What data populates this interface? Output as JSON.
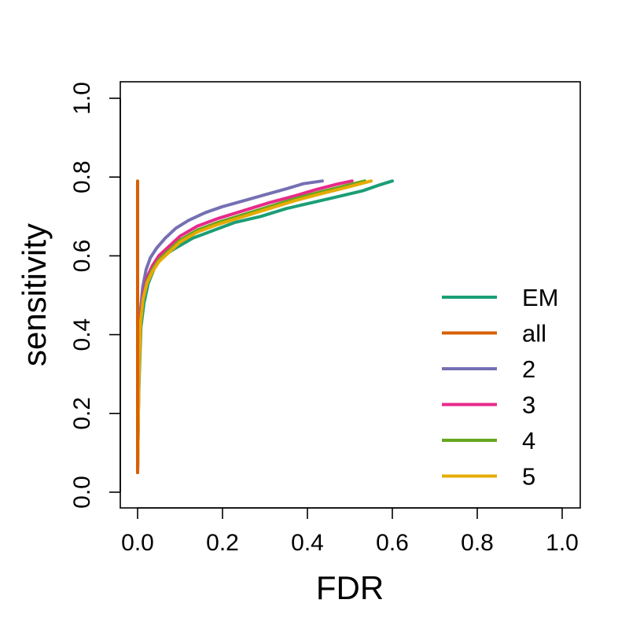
{
  "chart_data": {
    "type": "line",
    "title": "",
    "xlabel": "FDR",
    "ylabel": "sensitivity",
    "xlim": [
      0,
      1
    ],
    "ylim": [
      0,
      1
    ],
    "xticks": [
      "0.0",
      "0.2",
      "0.4",
      "0.6",
      "0.8",
      "1.0"
    ],
    "yticks": [
      "0.0",
      "0.2",
      "0.4",
      "0.6",
      "0.8",
      "1.0"
    ],
    "grid": false,
    "legend_position": "bottom-right",
    "series": [
      {
        "name": "EM",
        "color": "#1B9E77",
        "x": [
          0.0,
          0.004,
          0.008,
          0.015,
          0.025,
          0.04,
          0.06,
          0.09,
          0.13,
          0.18,
          0.23,
          0.29,
          0.35,
          0.41,
          0.47,
          0.53,
          0.57,
          0.6
        ],
        "y": [
          0.14,
          0.3,
          0.42,
          0.48,
          0.53,
          0.57,
          0.6,
          0.62,
          0.645,
          0.665,
          0.685,
          0.7,
          0.72,
          0.735,
          0.75,
          0.765,
          0.78,
          0.79
        ]
      },
      {
        "name": "all",
        "color": "#D95F02",
        "x": [
          0.0,
          0.0
        ],
        "y": [
          0.05,
          0.79
        ]
      },
      {
        "name": "2",
        "color": "#7570B3",
        "x": [
          0.0,
          0.003,
          0.006,
          0.012,
          0.02,
          0.03,
          0.045,
          0.065,
          0.09,
          0.12,
          0.16,
          0.2,
          0.25,
          0.3,
          0.35,
          0.39,
          0.435
        ],
        "y": [
          0.05,
          0.3,
          0.45,
          0.52,
          0.565,
          0.595,
          0.62,
          0.645,
          0.67,
          0.69,
          0.71,
          0.725,
          0.74,
          0.755,
          0.77,
          0.783,
          0.79
        ]
      },
      {
        "name": "3",
        "color": "#E7298A",
        "x": [
          0.0,
          0.003,
          0.007,
          0.013,
          0.022,
          0.035,
          0.05,
          0.075,
          0.1,
          0.14,
          0.19,
          0.25,
          0.31,
          0.37,
          0.42,
          0.47,
          0.505
        ],
        "y": [
          0.05,
          0.3,
          0.44,
          0.5,
          0.545,
          0.575,
          0.6,
          0.625,
          0.65,
          0.675,
          0.695,
          0.715,
          0.735,
          0.752,
          0.768,
          0.782,
          0.79
        ]
      },
      {
        "name": "4",
        "color": "#66A61E",
        "x": [
          0.0,
          0.003,
          0.007,
          0.013,
          0.022,
          0.035,
          0.05,
          0.075,
          0.1,
          0.14,
          0.19,
          0.25,
          0.31,
          0.37,
          0.43,
          0.49,
          0.535
        ],
        "y": [
          0.05,
          0.29,
          0.43,
          0.49,
          0.535,
          0.565,
          0.59,
          0.615,
          0.64,
          0.665,
          0.685,
          0.705,
          0.725,
          0.745,
          0.762,
          0.778,
          0.79
        ]
      },
      {
        "name": "5",
        "color": "#E6AB02",
        "x": [
          0.0,
          0.003,
          0.007,
          0.013,
          0.022,
          0.035,
          0.05,
          0.075,
          0.1,
          0.14,
          0.19,
          0.25,
          0.31,
          0.37,
          0.43,
          0.49,
          0.55
        ],
        "y": [
          0.05,
          0.29,
          0.43,
          0.49,
          0.53,
          0.56,
          0.585,
          0.61,
          0.635,
          0.66,
          0.68,
          0.7,
          0.72,
          0.74,
          0.757,
          0.773,
          0.79
        ]
      }
    ]
  }
}
